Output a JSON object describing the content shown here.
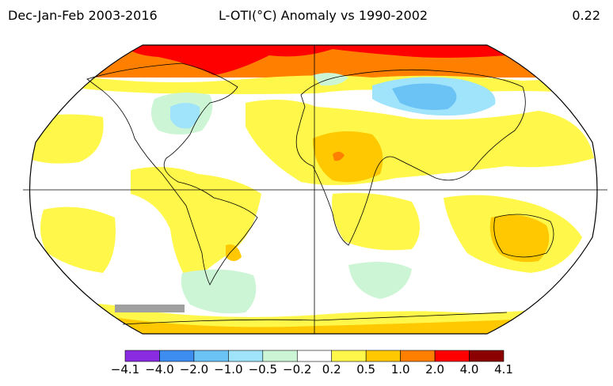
{
  "header": {
    "period": "Dec-Jan-Feb 2003-2016",
    "title": "L-OTI(°C) Anomaly vs 1990-2002",
    "global_mean": "0.22"
  },
  "legend": {
    "colors": [
      "#8a2be2",
      "#3d8cf0",
      "#6bc2f5",
      "#9fe4fa",
      "#ccf5d5",
      "#ffffff",
      "#fff84a",
      "#ffc800",
      "#ff7f00",
      "#ff0000",
      "#8b0000"
    ],
    "labels": [
      "−4.1",
      "−4.0",
      "−2.0",
      "−1.0",
      "−0.5",
      "−0.2",
      "0.2",
      "0.5",
      "1.0",
      "2.0",
      "4.0",
      "4.1"
    ]
  },
  "map": {
    "icons": [
      "globe-outline-icon",
      "coastline-icon"
    ]
  }
}
